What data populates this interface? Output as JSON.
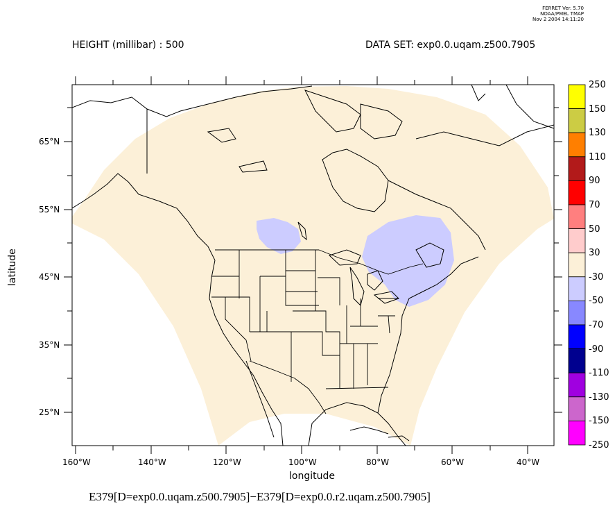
{
  "stamp": {
    "line1": "FERRET Ver. 5.70",
    "line2": "NOAA/PMEL TMAP",
    "line3": "Nov  2 2004 14:11:20"
  },
  "header": {
    "left": "HEIGHT (millibar) : 500",
    "right": "DATA SET: exp0.0.uqam.z500.7905"
  },
  "axes": {
    "xlabel": "longitude",
    "ylabel": "latitude",
    "x_ticks": [
      "160°W",
      "140°W",
      "120°W",
      "100°W",
      "80°W",
      "60°W",
      "40°W"
    ],
    "y_ticks": [
      "65°N",
      "55°N",
      "45°N",
      "35°N",
      "25°N"
    ]
  },
  "footer": "E379[D=exp0.0.uqam.z500.7905]−E379[D=exp0.0.r2.uqam.z500.7905]",
  "colorbar": {
    "labels": [
      "250",
      "150",
      "130",
      "110",
      "90",
      "70",
      "50",
      "30",
      "-30",
      "-50",
      "-70",
      "-90",
      "-110",
      "-130",
      "-150",
      "-250"
    ],
    "colors": [
      "#ffff00",
      "#cccc44",
      "#ff7f00",
      "#b21a1a",
      "#ff0000",
      "#ff7f7f",
      "#ffcccc",
      "#fcf0d8",
      "#ccccff",
      "#8888ff",
      "#0000ff",
      "#00008f",
      "#a000e0",
      "#cc66cc",
      "#ff00ff"
    ]
  },
  "legend_colors": {
    "domain_fill": "#fcf0d8",
    "negative_anomaly": "#ccccff"
  }
}
